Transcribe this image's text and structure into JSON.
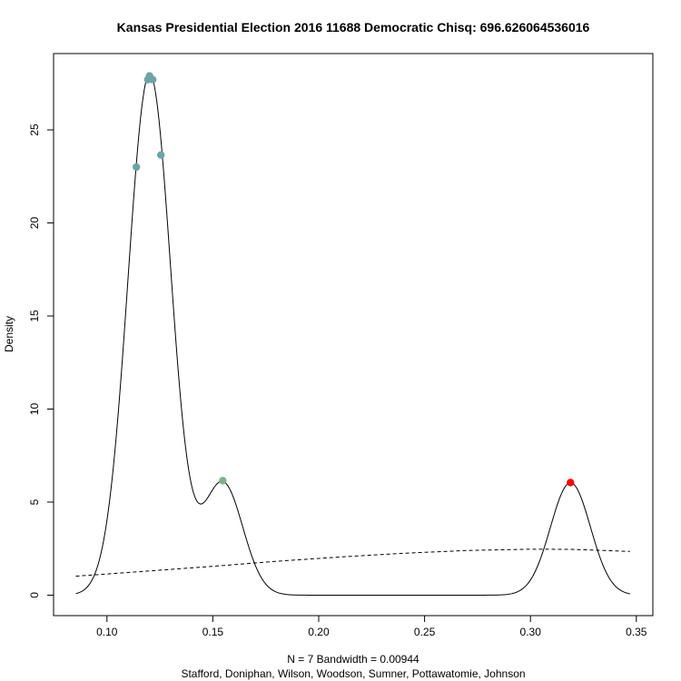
{
  "chart_data": {
    "type": "line",
    "title": "Kansas Presidential Election 2016 11688 Democratic Chisq: 696.626064536016",
    "xlabel": "N = 7   Bandwidth = 0.00944",
    "subtitle": "Stafford, Doniphan, Wilson, Woodson, Sumner, Pottawatomie, Johnson",
    "ylabel": "Density",
    "xlim": [
      0.0748,
      0.3578
    ],
    "ylim": [
      -1.1,
      29.1
    ],
    "xticks": [
      0.1,
      0.15,
      0.2,
      0.25,
      0.3,
      0.35
    ],
    "xtick_labels": [
      "0.10",
      "0.15",
      "0.20",
      "0.25",
      "0.30",
      "0.35"
    ],
    "yticks": [
      0,
      5,
      10,
      15,
      20,
      25
    ],
    "ytick_labels": [
      "0",
      "5",
      "10",
      "15",
      "20",
      "25"
    ],
    "grid": false,
    "bandwidth": 0.00944,
    "n": 7,
    "density_range": [
      0.0853,
      0.347
    ],
    "reference_curve": {
      "style": "dashed",
      "x": [
        0.0853,
        0.12,
        0.15,
        0.18,
        0.21,
        0.24,
        0.27,
        0.3,
        0.32,
        0.347
      ],
      "y": [
        1.02,
        1.3,
        1.55,
        1.82,
        2.05,
        2.25,
        2.4,
        2.47,
        2.46,
        2.35
      ]
    },
    "points": [
      {
        "x": 0.1139,
        "y": 23.0,
        "color": "#6fa3a6"
      },
      {
        "x": 0.1193,
        "y": 27.7,
        "color": "#6fa3a6"
      },
      {
        "x": 0.1201,
        "y": 27.9,
        "color": "#6fa3a6"
      },
      {
        "x": 0.1216,
        "y": 27.7,
        "color": "#6fa3a6"
      },
      {
        "x": 0.1255,
        "y": 23.65,
        "color": "#6fa3a6"
      },
      {
        "x": 0.1547,
        "y": 6.15,
        "color": "#7fb08a"
      },
      {
        "x": 0.3189,
        "y": 6.05,
        "color": "#ff0000"
      }
    ],
    "colors": {
      "density_line": "#000000",
      "reference_line": "#000000",
      "frame": "#000000"
    }
  }
}
